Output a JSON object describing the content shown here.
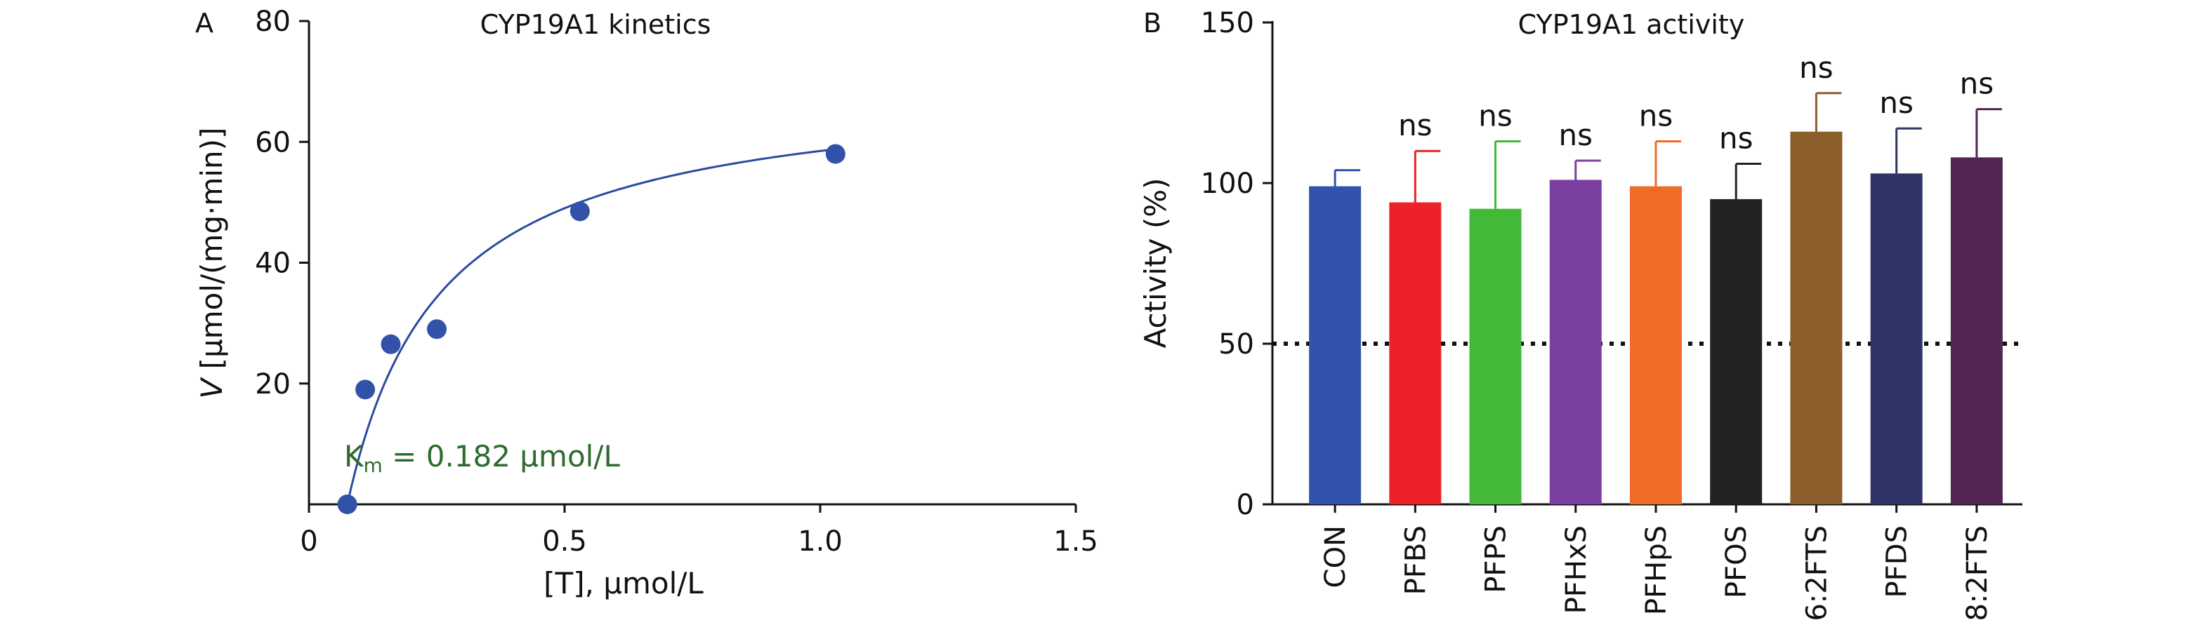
{
  "chart_data": [
    {
      "panel": "A",
      "type": "scatter",
      "title": "CYP19A1 kinetics",
      "xlabel": "[T], μmol/L",
      "ylabel_italic": "V",
      "ylabel_rest": " [μmol/(mg·min)]",
      "xlim": [
        0,
        1.5
      ],
      "ylim": [
        0,
        80
      ],
      "xticks": [
        0,
        0.5,
        1.0,
        1.5
      ],
      "xtick_labels": [
        "0",
        "0.5",
        "1.0",
        "1.5"
      ],
      "yticks": [
        20,
        40,
        60,
        80
      ],
      "ytick_labels": [
        "20",
        "40",
        "60",
        "80"
      ],
      "points": [
        {
          "x": 0.075,
          "y": 0
        },
        {
          "x": 0.11,
          "y": 19
        },
        {
          "x": 0.16,
          "y": 26.5
        },
        {
          "x": 0.25,
          "y": 29
        },
        {
          "x": 0.53,
          "y": 48.5
        },
        {
          "x": 1.03,
          "y": 58
        }
      ],
      "fit": {
        "model": "Michaelis-Menten",
        "vmax": 70,
        "km": 0.182,
        "x_offset": 0.075,
        "x_end": 1.03
      },
      "annotation": {
        "main": "K",
        "sub": "m",
        "rest": " = 0.182 μmol/L",
        "color": "#2e6b2e"
      },
      "marker_color": "#3152a8",
      "grid": false
    },
    {
      "panel": "B",
      "type": "bar",
      "title": "CYP19A1 activity",
      "ylabel": "Activity (%)",
      "ylim": [
        0,
        150
      ],
      "yticks": [
        0,
        50,
        100,
        150
      ],
      "ytick_labels": [
        "0",
        "50",
        "100",
        "150"
      ],
      "reference_line": 50,
      "grid": false,
      "bars": [
        {
          "label": "CON",
          "value": 99,
          "error": 5,
          "color": "#3152ad",
          "sig": ""
        },
        {
          "label": "PFBS",
          "value": 94,
          "error": 16,
          "color": "#ec2129",
          "sig": "ns"
        },
        {
          "label": "PFPS",
          "value": 92,
          "error": 21,
          "color": "#44b938",
          "sig": "ns"
        },
        {
          "label": "PFHxS",
          "value": 101,
          "error": 6,
          "color": "#7a3fa0",
          "sig": "ns"
        },
        {
          "label": "PFHpS",
          "value": 99,
          "error": 14,
          "color": "#f06b24",
          "sig": "ns"
        },
        {
          "label": "PFOS",
          "value": 95,
          "error": 11,
          "color": "#222222",
          "sig": "ns"
        },
        {
          "label": "6:2FTS",
          "value": 116,
          "error": 12,
          "color": "#8b5e2b",
          "sig": "ns"
        },
        {
          "label": "PFDS",
          "value": 103,
          "error": 14,
          "color": "#2e3566",
          "sig": "ns"
        },
        {
          "label": "8:2FTS",
          "value": 108,
          "error": 15,
          "color": "#542452",
          "sig": "ns"
        }
      ]
    }
  ]
}
